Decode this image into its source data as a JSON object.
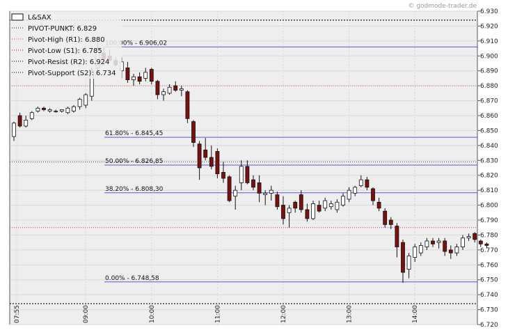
{
  "watermark": "© godmode-trader.de",
  "chart_data": {
    "type": "candlestick",
    "instrument": "L&SAX",
    "ylim": [
      6.72,
      6.93
    ],
    "y_ticks": [
      "6.720",
      "6.730",
      "6.740",
      "6.750",
      "6.760",
      "6.770",
      "6.780",
      "6.790",
      "6.800",
      "6.810",
      "6.820",
      "6.830",
      "6.840",
      "6.850",
      "6.860",
      "6.870",
      "6.880",
      "6.890",
      "6.900",
      "6.910",
      "6.920",
      "6.930"
    ],
    "x_ticks": [
      {
        "label": "07:55",
        "index": 0
      },
      {
        "label": "09:00",
        "index": 12
      },
      {
        "label": "10:00",
        "index": 23
      },
      {
        "label": "11:00",
        "index": 34
      },
      {
        "label": "12:00",
        "index": 45
      },
      {
        "label": "13:00",
        "index": 56
      },
      {
        "label": "14:00",
        "index": 67
      }
    ],
    "legend": [
      {
        "label": "L&SAX",
        "style": "box",
        "color": "#111111"
      },
      {
        "label": "PIVOT-PUNKT: 6.829",
        "style": "dotted",
        "color": "#444444",
        "value": 6.829
      },
      {
        "label": "Pivot-High (R1): 6.880",
        "style": "dotted",
        "color": "#e0705a",
        "value": 6.88
      },
      {
        "label": "Pivot-Low (S1): 6.785",
        "style": "dotted",
        "color": "#b0309a",
        "value": 6.785
      },
      {
        "label": "Pivot-Resist (R2): 6.924",
        "style": "dotted",
        "color": "#222222",
        "value": 6.924
      },
      {
        "label": "Pivot-Support (S2): 6.734",
        "style": "dotted",
        "color": "#222222",
        "value": 6.734
      }
    ],
    "fib_levels": [
      {
        "label": "100.00% - 6.906,02",
        "value": 6.90602
      },
      {
        "label": "61.80% - 6.845,45",
        "value": 6.84545
      },
      {
        "label": "50.00% - 6.826,85",
        "value": 6.82685
      },
      {
        "label": "38.20% - 6.808,30",
        "value": 6.8083
      },
      {
        "label": "0.00% - 6.748,58",
        "value": 6.74858
      }
    ],
    "candles": [
      {
        "o": 6.846,
        "h": 6.856,
        "l": 6.843,
        "c": 6.855
      },
      {
        "o": 6.86,
        "h": 6.862,
        "l": 6.852,
        "c": 6.853
      },
      {
        "o": 6.853,
        "h": 6.86,
        "l": 6.852,
        "c": 6.857
      },
      {
        "o": 6.858,
        "h": 6.863,
        "l": 6.857,
        "c": 6.862
      },
      {
        "o": 6.863,
        "h": 6.866,
        "l": 6.862,
        "c": 6.865
      },
      {
        "o": 6.865,
        "h": 6.866,
        "l": 6.863,
        "c": 6.864
      },
      {
        "o": 6.863,
        "h": 6.865,
        "l": 6.862,
        "c": 6.864
      },
      {
        "o": 6.863,
        "h": 6.864,
        "l": 6.862,
        "c": 6.863
      },
      {
        "o": 6.863,
        "h": 6.864,
        "l": 6.862,
        "c": 6.864
      },
      {
        "o": 6.862,
        "h": 6.866,
        "l": 6.861,
        "c": 6.865
      },
      {
        "o": 6.863,
        "h": 6.867,
        "l": 6.862,
        "c": 6.866
      },
      {
        "o": 6.866,
        "h": 6.872,
        "l": 6.864,
        "c": 6.871
      },
      {
        "o": 6.867,
        "h": 6.875,
        "l": 6.865,
        "c": 6.874
      },
      {
        "o": 6.873,
        "h": 6.892,
        "l": 6.87,
        "c": 6.89
      },
      {
        "o": 6.892,
        "h": 6.909,
        "l": 6.89,
        "c": 6.905
      },
      {
        "o": 6.902,
        "h": 6.906,
        "l": 6.895,
        "c": 6.898
      },
      {
        "o": 6.9,
        "h": 6.904,
        "l": 6.896,
        "c": 6.897
      },
      {
        "o": 6.897,
        "h": 6.899,
        "l": 6.893,
        "c": 6.894
      },
      {
        "o": 6.89,
        "h": 6.899,
        "l": 6.885,
        "c": 6.896
      },
      {
        "o": 6.892,
        "h": 6.896,
        "l": 6.882,
        "c": 6.884
      },
      {
        "o": 6.884,
        "h": 6.888,
        "l": 6.88,
        "c": 6.886
      },
      {
        "o": 6.886,
        "h": 6.889,
        "l": 6.881,
        "c": 6.883
      },
      {
        "o": 6.885,
        "h": 6.892,
        "l": 6.883,
        "c": 6.889
      },
      {
        "o": 6.891,
        "h": 6.892,
        "l": 6.881,
        "c": 6.883
      },
      {
        "o": 6.883,
        "h": 6.884,
        "l": 6.871,
        "c": 6.874
      },
      {
        "o": 6.874,
        "h": 6.878,
        "l": 6.87,
        "c": 6.876
      },
      {
        "o": 6.875,
        "h": 6.881,
        "l": 6.874,
        "c": 6.879
      },
      {
        "o": 6.88,
        "h": 6.883,
        "l": 6.876,
        "c": 6.877
      },
      {
        "o": 6.877,
        "h": 6.88,
        "l": 6.873,
        "c": 6.878
      },
      {
        "o": 6.876,
        "h": 6.877,
        "l": 6.855,
        "c": 6.858
      },
      {
        "o": 6.856,
        "h": 6.857,
        "l": 6.839,
        "c": 6.842
      },
      {
        "o": 6.841,
        "h": 6.843,
        "l": 6.817,
        "c": 6.825
      },
      {
        "o": 6.837,
        "h": 6.845,
        "l": 6.83,
        "c": 6.832
      },
      {
        "o": 6.832,
        "h": 6.84,
        "l": 6.824,
        "c": 6.826
      },
      {
        "o": 6.836,
        "h": 6.838,
        "l": 6.818,
        "c": 6.821
      },
      {
        "o": 6.822,
        "h": 6.829,
        "l": 6.815,
        "c": 6.818
      },
      {
        "o": 6.819,
        "h": 6.82,
        "l": 6.802,
        "c": 6.803
      },
      {
        "o": 6.806,
        "h": 6.813,
        "l": 6.797,
        "c": 6.81
      },
      {
        "o": 6.815,
        "h": 6.83,
        "l": 6.81,
        "c": 6.826
      },
      {
        "o": 6.826,
        "h": 6.83,
        "l": 6.814,
        "c": 6.815
      },
      {
        "o": 6.817,
        "h": 6.82,
        "l": 6.81,
        "c": 6.812
      },
      {
        "o": 6.815,
        "h": 6.82,
        "l": 6.802,
        "c": 6.808
      },
      {
        "o": 6.807,
        "h": 6.81,
        "l": 6.8,
        "c": 6.808
      },
      {
        "o": 6.808,
        "h": 6.813,
        "l": 6.803,
        "c": 6.81
      },
      {
        "o": 6.807,
        "h": 6.809,
        "l": 6.797,
        "c": 6.799
      },
      {
        "o": 6.8,
        "h": 6.806,
        "l": 6.787,
        "c": 6.791
      },
      {
        "o": 6.795,
        "h": 6.8,
        "l": 6.785,
        "c": 6.798
      },
      {
        "o": 6.802,
        "h": 6.803,
        "l": 6.795,
        "c": 6.798
      },
      {
        "o": 6.807,
        "h": 6.81,
        "l": 6.795,
        "c": 6.797
      },
      {
        "o": 6.797,
        "h": 6.801,
        "l": 6.789,
        "c": 6.791
      },
      {
        "o": 6.791,
        "h": 6.803,
        "l": 6.79,
        "c": 6.801
      },
      {
        "o": 6.8,
        "h": 6.803,
        "l": 6.795,
        "c": 6.796
      },
      {
        "o": 6.798,
        "h": 6.805,
        "l": 6.796,
        "c": 6.803
      },
      {
        "o": 6.799,
        "h": 6.803,
        "l": 6.797,
        "c": 6.801
      },
      {
        "o": 6.797,
        "h": 6.804,
        "l": 6.795,
        "c": 6.802
      },
      {
        "o": 6.8,
        "h": 6.808,
        "l": 6.799,
        "c": 6.806
      },
      {
        "o": 6.804,
        "h": 6.812,
        "l": 6.802,
        "c": 6.81
      },
      {
        "o": 6.808,
        "h": 6.813,
        "l": 6.806,
        "c": 6.812
      },
      {
        "o": 6.813,
        "h": 6.82,
        "l": 6.812,
        "c": 6.817
      },
      {
        "o": 6.817,
        "h": 6.819,
        "l": 6.81,
        "c": 6.812
      },
      {
        "o": 6.811,
        "h": 6.812,
        "l": 6.8,
        "c": 6.803
      },
      {
        "o": 6.802,
        "h": 6.805,
        "l": 6.796,
        "c": 6.798
      },
      {
        "o": 6.796,
        "h": 6.798,
        "l": 6.785,
        "c": 6.787
      },
      {
        "o": 6.79,
        "h": 6.792,
        "l": 6.784,
        "c": 6.787
      },
      {
        "o": 6.786,
        "h": 6.788,
        "l": 6.765,
        "c": 6.772
      },
      {
        "o": 6.775,
        "h": 6.777,
        "l": 6.748,
        "c": 6.755
      },
      {
        "o": 6.757,
        "h": 6.768,
        "l": 6.751,
        "c": 6.766
      },
      {
        "o": 6.765,
        "h": 6.774,
        "l": 6.762,
        "c": 6.772
      },
      {
        "o": 6.768,
        "h": 6.775,
        "l": 6.766,
        "c": 6.773
      },
      {
        "o": 6.772,
        "h": 6.778,
        "l": 6.77,
        "c": 6.776
      },
      {
        "o": 6.776,
        "h": 6.778,
        "l": 6.772,
        "c": 6.774
      },
      {
        "o": 6.775,
        "h": 6.778,
        "l": 6.771,
        "c": 6.776
      },
      {
        "o": 6.776,
        "h": 6.778,
        "l": 6.766,
        "c": 6.769
      },
      {
        "o": 6.77,
        "h": 6.773,
        "l": 6.764,
        "c": 6.768
      },
      {
        "o": 6.768,
        "h": 6.774,
        "l": 6.766,
        "c": 6.772
      },
      {
        "o": 6.772,
        "h": 6.78,
        "l": 6.77,
        "c": 6.778
      },
      {
        "o": 6.778,
        "h": 6.781,
        "l": 6.776,
        "c": 6.779
      },
      {
        "o": 6.781,
        "h": 6.782,
        "l": 6.775,
        "c": 6.777
      },
      {
        "o": 6.776,
        "h": 6.777,
        "l": 6.772,
        "c": 6.774
      },
      {
        "o": 6.774,
        "h": 6.775,
        "l": 6.771,
        "c": 6.773
      }
    ],
    "colors": {
      "up_fill": "#ffffff",
      "down_fill": "#7a1010",
      "candle_edge": "#111111",
      "fib_line": "#5a5ad0",
      "grid": "#d8d8d8",
      "plot_bg": "#eeeeee"
    },
    "grid": true
  }
}
